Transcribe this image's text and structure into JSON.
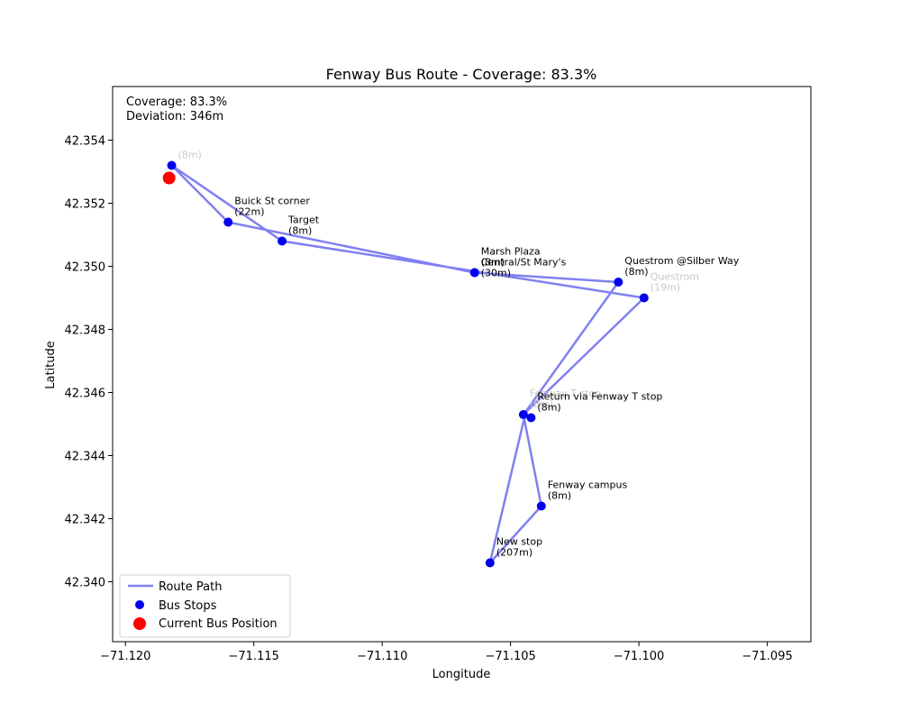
{
  "chart_data": {
    "type": "scatter",
    "title": "Fenway Bus Route - Coverage: 83.3%",
    "xlabel": "Longitude",
    "ylabel": "Latitude",
    "xlim": [
      -71.1205,
      -71.0933
    ],
    "ylim": [
      42.3381,
      42.3557
    ],
    "x_ticks": [
      -71.12,
      -71.115,
      -71.11,
      -71.105,
      -71.1,
      -71.095
    ],
    "y_ticks": [
      42.34,
      42.342,
      42.344,
      42.346,
      42.348,
      42.35,
      42.352,
      42.354
    ],
    "x_tick_labels": [
      "−71.120",
      "−71.115",
      "−71.110",
      "−71.105",
      "−71.100",
      "−71.095"
    ],
    "y_tick_labels": [
      "42.340",
      "42.342",
      "42.344",
      "42.346",
      "42.348",
      "42.350",
      "42.352",
      "42.354"
    ],
    "info_box": {
      "coverage": "Coverage: 83.3%",
      "deviation": "Deviation: 346m"
    },
    "route_path": {
      "name": "Route Path",
      "color": "#8080f0",
      "points": [
        [
          -71.1182,
          42.3532
        ],
        [
          -71.116,
          42.3514
        ],
        [
          -71.1064,
          42.3498
        ],
        [
          -71.1008,
          42.3495
        ],
        [
          -71.1044,
          42.3454
        ],
        [
          -71.1058,
          42.3406
        ],
        [
          -71.1038,
          42.3424
        ],
        [
          -71.1045,
          42.3453
        ],
        [
          -71.0998,
          42.349
        ],
        [
          -71.1139,
          42.3508
        ],
        [
          -71.1182,
          42.3532
        ]
      ]
    },
    "stops": {
      "name": "Bus Stops",
      "color": "#0000ee",
      "items": [
        {
          "lon": -71.1182,
          "lat": 42.3532,
          "name": "",
          "dist": "(8m)",
          "faint": true
        },
        {
          "lon": -71.116,
          "lat": 42.3514,
          "name": "Buick St corner",
          "dist": "(22m)",
          "faint": false
        },
        {
          "lon": -71.1139,
          "lat": 42.3508,
          "name": "Target",
          "dist": "(8m)",
          "faint": false
        },
        {
          "lon": -71.1064,
          "lat": 42.3498,
          "name": "Marsh Plaza",
          "dist": "(8m)",
          "faint": false
        },
        {
          "lon": -71.1064,
          "lat": 42.3498,
          "name": "Central/St Mary's",
          "dist": "(30m)",
          "faint": false,
          "offset": "below"
        },
        {
          "lon": -71.1008,
          "lat": 42.3495,
          "name": "Questrom @Silber Way",
          "dist": "(8m)",
          "faint": false
        },
        {
          "lon": -71.0998,
          "lat": 42.349,
          "name": "Questrom",
          "dist": "(19m)",
          "faint": true
        },
        {
          "lon": -71.1045,
          "lat": 42.3453,
          "name": "Fenway T stop",
          "dist": "(8m)",
          "faint": true
        },
        {
          "lon": -71.1042,
          "lat": 42.3452,
          "name": "Return via Fenway T stop",
          "dist": "(8m)",
          "faint": false
        },
        {
          "lon": -71.1038,
          "lat": 42.3424,
          "name": "Fenway campus",
          "dist": "(8m)",
          "faint": false
        },
        {
          "lon": -71.1058,
          "lat": 42.3406,
          "name": "New stop",
          "dist": "(207m)",
          "faint": false
        }
      ]
    },
    "current_position": {
      "name": "Current Bus Position",
      "color": "#ff0000",
      "lon": -71.1183,
      "lat": 42.3528
    },
    "legend": {
      "placement": "lower-left",
      "entries": [
        "Route Path",
        "Bus Stops",
        "Current Bus Position"
      ]
    },
    "grid": false
  }
}
